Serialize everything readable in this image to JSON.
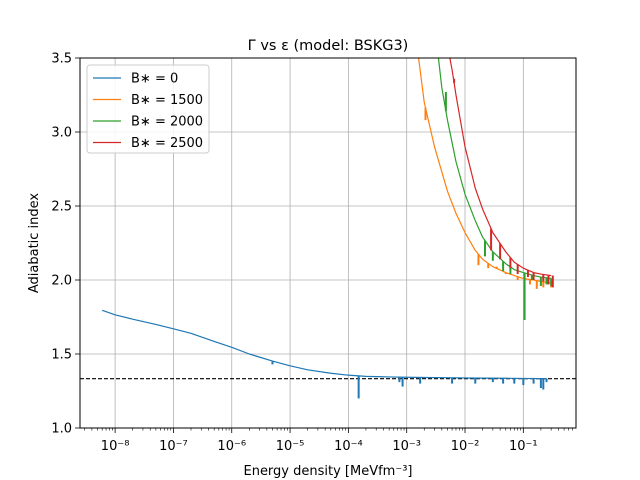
{
  "chart_data": {
    "type": "line",
    "title": "Γ vs ε (model: BSKG3)",
    "xlabel": "Energy density [MeVfm⁻³]",
    "ylabel": "Adiabatic index",
    "xscale": "log",
    "xlim": [
      2.5e-09,
      0.8
    ],
    "ylim": [
      1.0,
      3.5
    ],
    "xticks": [
      {
        "value": 1e-08,
        "label": "10⁻⁸"
      },
      {
        "value": 1e-07,
        "label": "10⁻⁷"
      },
      {
        "value": 1e-06,
        "label": "10⁻⁶"
      },
      {
        "value": 1e-05,
        "label": "10⁻⁵"
      },
      {
        "value": 0.0001,
        "label": "10⁻⁴"
      },
      {
        "value": 0.001,
        "label": "10⁻³"
      },
      {
        "value": 0.01,
        "label": "10⁻²"
      },
      {
        "value": 0.1,
        "label": "10⁻¹"
      }
    ],
    "yticks": [
      {
        "value": 1.0,
        "label": "1.0"
      },
      {
        "value": 1.5,
        "label": "1.5"
      },
      {
        "value": 2.0,
        "label": "2.0"
      },
      {
        "value": 2.5,
        "label": "2.5"
      },
      {
        "value": 3.0,
        "label": "3.0"
      },
      {
        "value": 3.5,
        "label": "3.5"
      }
    ],
    "grid": true,
    "legend_position": "top-left",
    "reference_line": {
      "y": 1.333,
      "style": "dashed",
      "color": "#000000"
    },
    "series": [
      {
        "name": "B* = 0",
        "legend_label": "B∗ = 0",
        "color": "#1f77b4",
        "points": [
          [
            6e-09,
            1.795
          ],
          [
            1e-08,
            1.765
          ],
          [
            2e-08,
            1.735
          ],
          [
            5e-08,
            1.7
          ],
          [
            1e-07,
            1.67
          ],
          [
            2e-07,
            1.64
          ],
          [
            5e-07,
            1.585
          ],
          [
            1e-06,
            1.545
          ],
          [
            2e-06,
            1.5
          ],
          [
            5e-06,
            1.452
          ],
          [
            1e-05,
            1.42
          ],
          [
            2e-05,
            1.393
          ],
          [
            5e-05,
            1.37
          ],
          [
            0.0001,
            1.357
          ],
          [
            0.0002,
            1.349
          ],
          [
            0.0005,
            1.345
          ],
          [
            0.001,
            1.343
          ],
          [
            0.002,
            1.341
          ],
          [
            0.005,
            1.34
          ],
          [
            0.01,
            1.338
          ],
          [
            0.02,
            1.337
          ],
          [
            0.05,
            1.336
          ],
          [
            0.1,
            1.335
          ],
          [
            0.2,
            1.334
          ],
          [
            0.25,
            1.334
          ]
        ],
        "spikes": [
          [
            5e-06,
            1.43
          ],
          [
            0.00015,
            1.2
          ],
          [
            0.00015,
            1.35
          ],
          [
            0.00075,
            1.31
          ],
          [
            0.00085,
            1.28
          ],
          [
            0.0017,
            1.3
          ],
          [
            0.006,
            1.3
          ],
          [
            0.015,
            1.3
          ],
          [
            0.03,
            1.31
          ],
          [
            0.045,
            1.3
          ],
          [
            0.07,
            1.3
          ],
          [
            0.1,
            1.29
          ],
          [
            0.15,
            1.3
          ],
          [
            0.2,
            1.27
          ],
          [
            0.22,
            1.26
          ],
          [
            0.25,
            1.31
          ]
        ]
      },
      {
        "name": "B* = 1500",
        "legend_label": "B∗ = 1500",
        "color": "#ff7f0e",
        "points": [
          [
            0.0016,
            3.5
          ],
          [
            0.002,
            3.2
          ],
          [
            0.003,
            2.9
          ],
          [
            0.005,
            2.6
          ],
          [
            0.007,
            2.45
          ],
          [
            0.01,
            2.32
          ],
          [
            0.015,
            2.2
          ],
          [
            0.02,
            2.14
          ],
          [
            0.03,
            2.09
          ],
          [
            0.05,
            2.05
          ],
          [
            0.07,
            2.03
          ],
          [
            0.1,
            2.01
          ],
          [
            0.15,
            2.0
          ],
          [
            0.2,
            1.99
          ],
          [
            0.3,
            1.98
          ]
        ],
        "spikes": [
          [
            0.0021,
            3.08
          ],
          [
            0.017,
            2.1
          ],
          [
            0.025,
            2.08
          ],
          [
            0.035,
            2.09
          ],
          [
            0.05,
            2.04
          ],
          [
            0.08,
            2.0
          ],
          [
            0.13,
            1.97
          ],
          [
            0.17,
            1.94
          ],
          [
            0.22,
            1.95
          ],
          [
            0.3,
            1.95
          ]
        ]
      },
      {
        "name": "B* = 2000",
        "legend_label": "B∗ = 2000",
        "color": "#2ca02c",
        "points": [
          [
            0.0035,
            3.5
          ],
          [
            0.004,
            3.3
          ],
          [
            0.005,
            3.08
          ],
          [
            0.007,
            2.8
          ],
          [
            0.01,
            2.58
          ],
          [
            0.015,
            2.4
          ],
          [
            0.02,
            2.29
          ],
          [
            0.03,
            2.19
          ],
          [
            0.05,
            2.11
          ],
          [
            0.07,
            2.07
          ],
          [
            0.1,
            2.05
          ],
          [
            0.15,
            2.03
          ],
          [
            0.2,
            2.02
          ],
          [
            0.3,
            2.01
          ]
        ],
        "spikes": [
          [
            0.0047,
            3.27
          ],
          [
            0.022,
            2.16
          ],
          [
            0.03,
            2.13
          ],
          [
            0.045,
            2.06
          ],
          [
            0.06,
            2.04
          ],
          [
            0.105,
            1.73
          ],
          [
            0.14,
            2.0
          ],
          [
            0.2,
            1.96
          ],
          [
            0.25,
            1.97
          ],
          [
            0.3,
            1.96
          ]
        ]
      },
      {
        "name": "B* = 2500",
        "legend_label": "B∗ = 2500",
        "color": "#d62728",
        "points": [
          [
            0.0055,
            3.5
          ],
          [
            0.006,
            3.42
          ],
          [
            0.007,
            3.25
          ],
          [
            0.01,
            2.9
          ],
          [
            0.015,
            2.62
          ],
          [
            0.02,
            2.48
          ],
          [
            0.03,
            2.32
          ],
          [
            0.05,
            2.19
          ],
          [
            0.07,
            2.12
          ],
          [
            0.1,
            2.08
          ],
          [
            0.15,
            2.05
          ],
          [
            0.2,
            2.04
          ],
          [
            0.3,
            2.03
          ]
        ],
        "spikes": [
          [
            0.0065,
            3.36
          ],
          [
            0.028,
            2.2
          ],
          [
            0.04,
            2.14
          ],
          [
            0.06,
            2.08
          ],
          [
            0.08,
            2.04
          ],
          [
            0.12,
            2.02
          ],
          [
            0.15,
            2.0
          ],
          [
            0.22,
            1.99
          ],
          [
            0.27,
            1.97
          ],
          [
            0.32,
            1.95
          ]
        ]
      }
    ]
  }
}
